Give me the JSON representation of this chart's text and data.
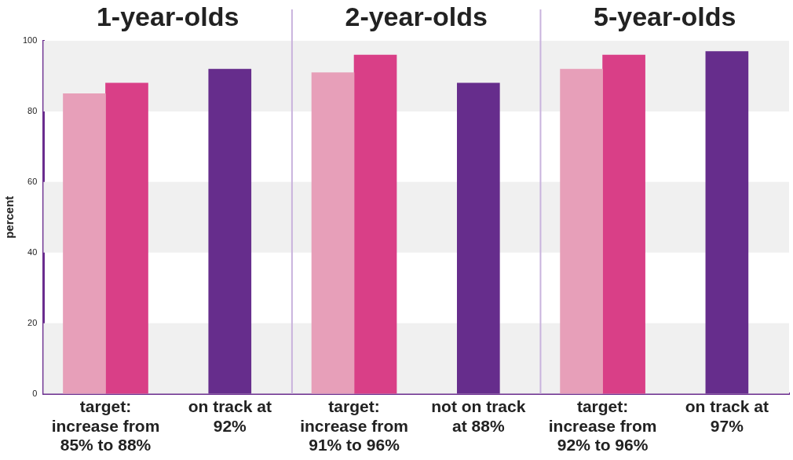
{
  "chart_data": {
    "type": "bar",
    "ylabel": "percent",
    "categories": [
      "target: increase from 85% to 88%",
      "on track at 92%",
      "target: increase from 91% to 96%",
      "not on track at 88%",
      "target: increase from 92% to 96%",
      "on track at 97%"
    ],
    "series": [
      {
        "color": "#e79fb9",
        "values": [
          85,
          null,
          91,
          null,
          92,
          null
        ]
      },
      {
        "color": "#d93f87",
        "values": [
          88,
          null,
          96,
          null,
          96,
          null
        ]
      },
      {
        "color": "#662d8c",
        "values": [
          null,
          92,
          null,
          88,
          null,
          97
        ]
      }
    ],
    "ylim": [
      0,
      100
    ],
    "yticks": [
      0,
      20,
      40,
      60,
      80,
      100
    ],
    "grid": false,
    "legend": false,
    "bands": [
      {
        "axis": "y",
        "from": 0,
        "to": 20,
        "color": "#f0f0f0"
      },
      {
        "axis": "y",
        "from": 40,
        "to": 60,
        "color": "#f0f0f0"
      },
      {
        "axis": "y",
        "from": 80,
        "to": 100,
        "color": "#f0f0f0"
      }
    ],
    "annotations": [
      "1-year-olds",
      "2-year-olds",
      "5-year-olds"
    ]
  }
}
